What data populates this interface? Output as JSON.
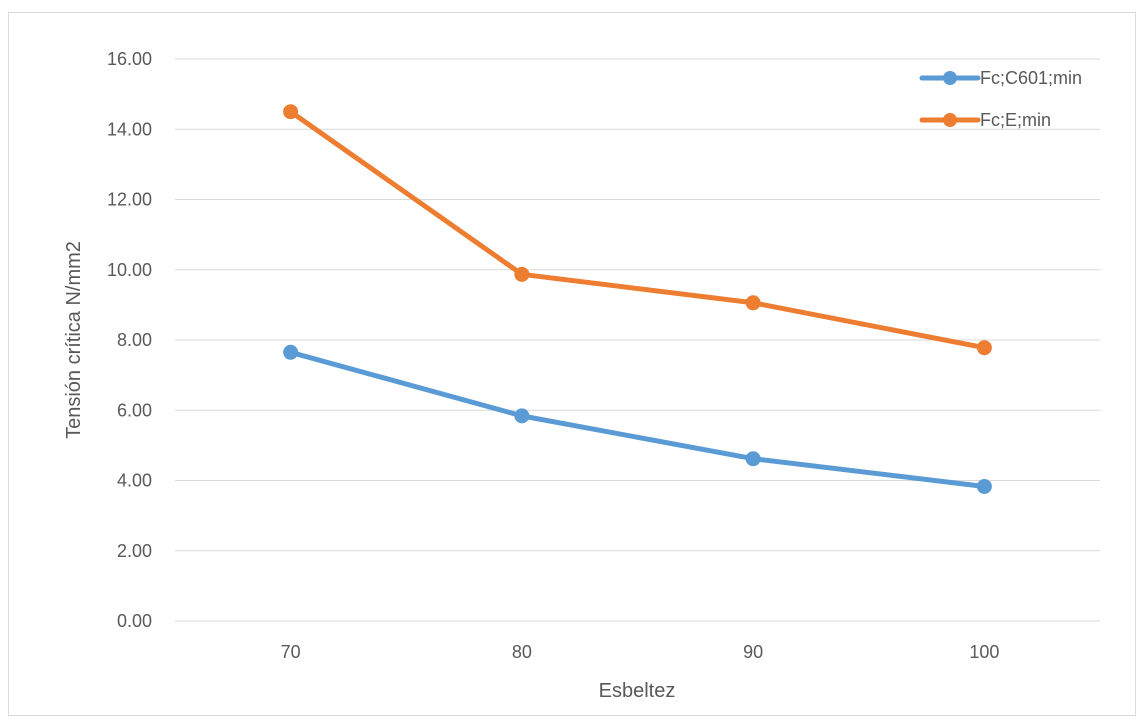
{
  "chart_data": {
    "type": "line",
    "x": [
      70,
      80,
      90,
      100
    ],
    "categories": [
      "70",
      "80",
      "90",
      "100"
    ],
    "series": [
      {
        "name": "Fc;C601;min",
        "values": [
          7.65,
          5.84,
          4.62,
          3.83
        ],
        "color": "#5b9bd5"
      },
      {
        "name": "Fc;E;min",
        "values": [
          14.5,
          9.87,
          9.06,
          7.78
        ],
        "color": "#ed7d31"
      }
    ],
    "xlabel": "Esbeltez",
    "ylabel": "Tensión crítica N/mm2",
    "ylim": [
      0,
      16
    ],
    "yticks": [
      "0.00",
      "2.00",
      "4.00",
      "6.00",
      "8.00",
      "10.00",
      "12.00",
      "14.00",
      "16.00"
    ],
    "grid": true,
    "legend_position": "top-right",
    "gridline_color": "#d9d9d9"
  }
}
